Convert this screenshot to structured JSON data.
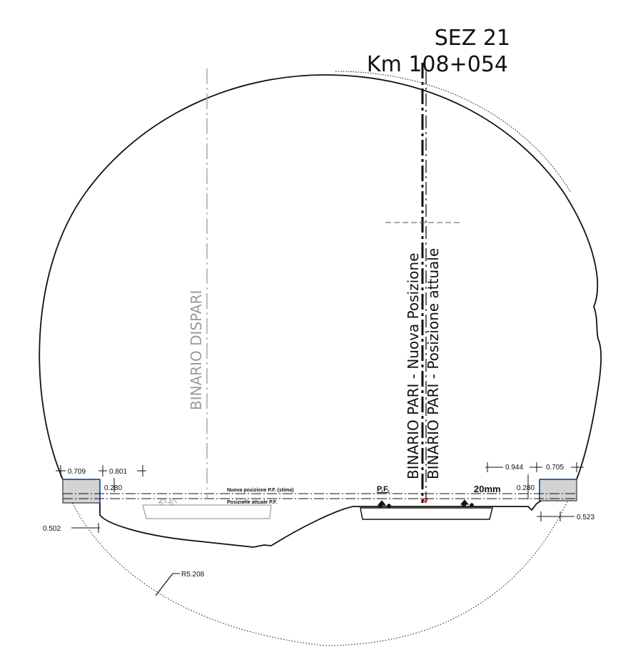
{
  "title": {
    "section": "SEZ  21",
    "km": "Km  108+054"
  },
  "tracks": {
    "odd": "BINARIO  DISPARI",
    "even_new": "BINARIO  PARI  -  Nuova  Posizione",
    "even_current": "BINARIO  PARI  -  Posizione  attuale"
  },
  "notes": {
    "new_pf": "Nuova posizione P.F. (stima)",
    "current_pf": "Posizione attuale P.F.",
    "pf": "P.F.",
    "offset": "20mm"
  },
  "dimensions": {
    "left_top_a": "0.709",
    "left_top_b": "0.801",
    "left_height": "0.280",
    "left_bottom": "0.502",
    "right_top_a": "0.944",
    "right_top_b": "0.705",
    "right_height": "0.280",
    "right_bottom": "0.523",
    "radius": "R5.208"
  },
  "colors": {
    "line": "#111111",
    "axis_grey": "#9a9a9a",
    "walkway_fill": "#d3d3d3",
    "walkway_edge": "#2f5fd0",
    "marker_red": "#d22020"
  }
}
